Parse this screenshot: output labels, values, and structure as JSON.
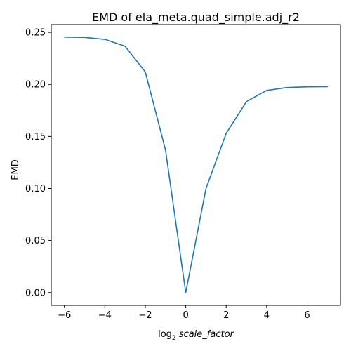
{
  "chart_data": {
    "type": "line",
    "title": "EMD of ela_meta.quad_simple.adj_r2",
    "xlabel_prefix": "log",
    "xlabel_sub": "2",
    "xlabel_var": "scale_factor",
    "ylabel": "EMD",
    "xlim": [
      -6.65,
      7.65
    ],
    "ylim": [
      -0.0123,
      0.2575
    ],
    "xticks": [
      -6,
      -4,
      -2,
      0,
      2,
      4,
      6
    ],
    "xtick_labels": [
      "−6",
      "−4",
      "−2",
      "0",
      "2",
      "4",
      "6"
    ],
    "yticks": [
      0.0,
      0.05,
      0.1,
      0.15,
      0.2,
      0.25
    ],
    "ytick_labels": [
      "0.00",
      "0.05",
      "0.10",
      "0.15",
      "0.20",
      "0.25"
    ],
    "grid": false,
    "series": [
      {
        "color": "#1f77b4",
        "x": [
          -6,
          -5,
          -4,
          -3,
          -2,
          -1,
          0,
          1,
          2,
          3,
          4,
          5,
          6,
          7
        ],
        "y": [
          0.2455,
          0.2451,
          0.2433,
          0.2367,
          0.212,
          0.137,
          0.0,
          0.1,
          0.153,
          0.1835,
          0.1942,
          0.197,
          0.1977,
          0.1978
        ]
      }
    ]
  }
}
